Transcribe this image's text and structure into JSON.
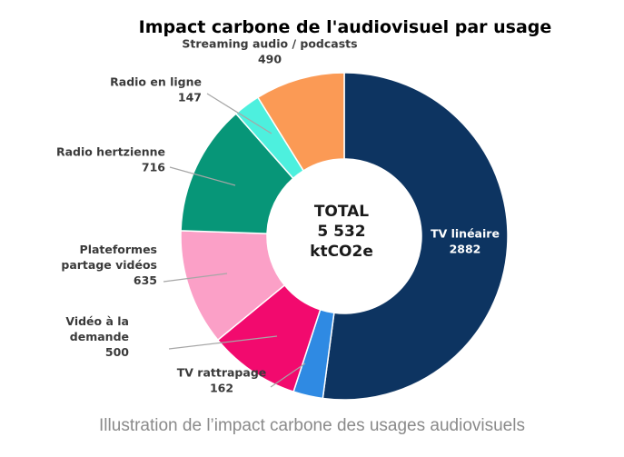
{
  "chart_data": {
    "type": "pie",
    "title": "Impact carbone de l'audiovisuel par usage",
    "center_text": [
      "TOTAL",
      "5 532",
      "ktCO2e"
    ],
    "slices": [
      {
        "label": [
          "TV linéaire"
        ],
        "value_text": "2882",
        "value": 2882,
        "color": "#0d3461"
      },
      {
        "label": [
          "TV rattrapage"
        ],
        "value_text": "162",
        "value": 162,
        "color": "#2f8ae3"
      },
      {
        "label": [
          "Vidéo à la",
          "demande"
        ],
        "value_text": "500",
        "value": 500,
        "color": "#f20a6e"
      },
      {
        "label": [
          "Plateformes",
          "partage vidéos"
        ],
        "value_text": "635",
        "value": 635,
        "color": "#fba0c7"
      },
      {
        "label": [
          "Radio hertzienne"
        ],
        "value_text": "716",
        "value": 716,
        "color": "#079678"
      },
      {
        "label": [
          "Radio en ligne"
        ],
        "value_text": "147",
        "value": 147,
        "color": "#4df0de"
      },
      {
        "label": [
          "Streaming audio / podcasts"
        ],
        "value_text": "490",
        "value": 490,
        "color": "#fb9a55"
      }
    ]
  },
  "caption": "Illustration de l’impact carbone des usages audiovisuels"
}
